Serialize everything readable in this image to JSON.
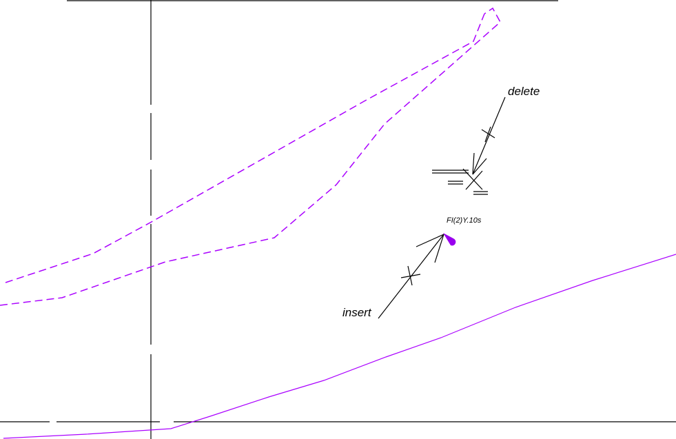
{
  "labels": {
    "delete": "delete",
    "insert": "insert",
    "tag": "FI(2)Y.10s"
  },
  "colors": {
    "background": "#ffffff",
    "line": "#000000",
    "curve": "#aa00ff",
    "marker": "#9900ee"
  },
  "icons": {
    "marker": "teardrop-marker-icon",
    "cross": "cross-mark-icon",
    "arrow": "arrowhead-icon"
  }
}
